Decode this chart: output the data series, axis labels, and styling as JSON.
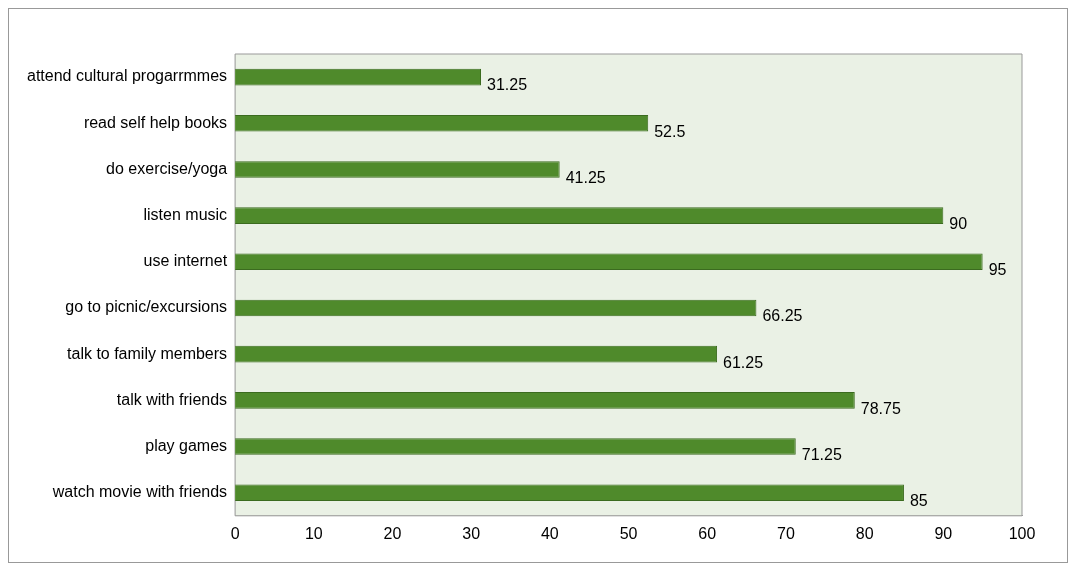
{
  "chart_data": {
    "type": "bar",
    "orientation": "horizontal",
    "categories": [
      "attend cultural progarrmmes",
      "read self help books",
      "do exercise/yoga",
      "listen music",
      "use internet",
      "go to picnic/excursions",
      "talk to family members",
      "talk with friends",
      "play games",
      "watch movie with friends"
    ],
    "values": [
      31.25,
      52.5,
      41.25,
      90,
      95,
      66.25,
      61.25,
      78.75,
      71.25,
      85
    ],
    "color": "#4f8a2b",
    "xlim": [
      0,
      100
    ],
    "xticks": [
      0,
      10,
      20,
      30,
      40,
      50,
      60,
      70,
      80,
      90,
      100
    ],
    "data_labels": true,
    "grid": false,
    "legend": false
  }
}
